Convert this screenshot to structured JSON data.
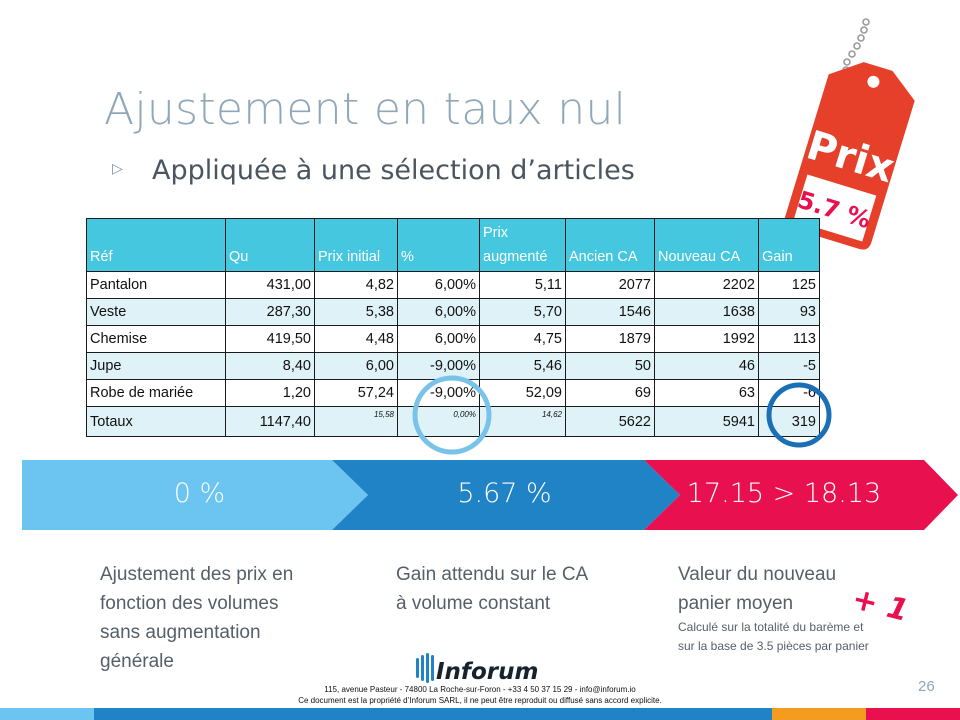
{
  "slide": {
    "title": "Ajustement en taux nul",
    "bullet": "▷",
    "subtitle": "Appliquée à une sélection d’articles",
    "page_number": "26"
  },
  "tag": {
    "label": "Prix",
    "value": "5.7 %"
  },
  "table": {
    "headers": [
      "Réf",
      "Qu",
      "Prix initial",
      "%",
      "Prix augmenté",
      "Ancien CA",
      "Nouveau CA",
      "Gain"
    ],
    "rows": [
      [
        "Pantalon",
        "431,00",
        "4,82",
        "6,00%",
        "5,11",
        "2077",
        "2202",
        "125"
      ],
      [
        "Veste",
        "287,30",
        "5,38",
        "6,00%",
        "5,70",
        "1546",
        "1638",
        "93"
      ],
      [
        "Chemise",
        "419,50",
        "4,48",
        "6,00%",
        "4,75",
        "1879",
        "1992",
        "113"
      ],
      [
        "Jupe",
        "8,40",
        "6,00",
        "-9,00%",
        "5,46",
        "50",
        "46",
        "-5"
      ],
      [
        "Robe de mariée",
        "1,20",
        "57,24",
        "-9,00%",
        "52,09",
        "69",
        "63",
        "-6"
      ],
      [
        "Totaux",
        "1147,40",
        "15,58",
        "0,00%",
        "14,62",
        "5622",
        "5941",
        "319"
      ]
    ]
  },
  "steps": [
    {
      "value": "0 %",
      "description": [
        "Ajustement des prix en",
        "fonction des volumes",
        "sans augmentation",
        "générale"
      ]
    },
    {
      "value": "5.67 %",
      "description": [
        "Gain attendu sur le CA",
        "à volume constant"
      ]
    },
    {
      "value": "17.15 > 18.13",
      "description": [
        "Valeur du nouveau",
        "panier moyen"
      ],
      "note": [
        "Calculé sur la totalité du barème et",
        "sur la base de 3.5 pièces par panier"
      ]
    }
  ],
  "annotation": "+ 1",
  "logo": "Inforum",
  "footer": {
    "line1": "115, avenue Pasteur - 74800 La Roche-sur-Foron - +33 4 50 37 15 29 - info@inforum.io",
    "line2": "Ce document est la propriété d’Inforum SARL, il ne peut être reproduit ou diffusé sans accord explicite."
  },
  "colors": {
    "step1": "#6cc4f0",
    "step2": "#1f83c5",
    "step3": "#e8104f",
    "table_header": "#45c7e0",
    "circle": "#1a6fb5",
    "circle_light": "#79c3ea"
  }
}
